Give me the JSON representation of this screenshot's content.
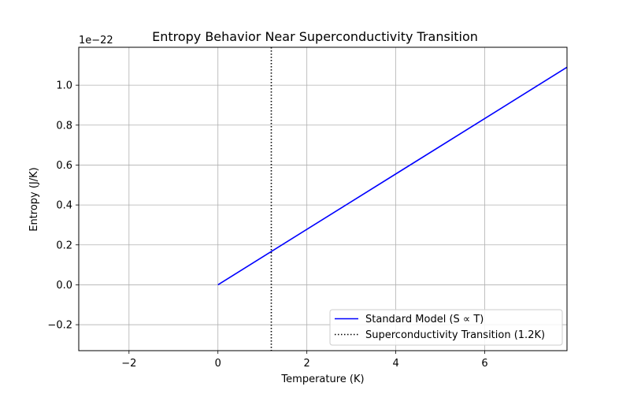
{
  "chart_data": {
    "type": "line",
    "title": "Entropy Behavior Near Superconductivity Transition",
    "xlabel": "Temperature (K)",
    "ylabel": "Entropy (J/K)",
    "y_offset_label": "1e−22",
    "xlim": [
      -3.13,
      7.85
    ],
    "ylim": [
      -0.33,
      1.19
    ],
    "xticks": [
      -2,
      0,
      2,
      4,
      6
    ],
    "xtick_labels": [
      "−2",
      "0",
      "2",
      "4",
      "6"
    ],
    "yticks": [
      -0.2,
      0.0,
      0.2,
      0.4,
      0.6,
      0.8,
      1.0
    ],
    "ytick_labels": [
      "−0.2",
      "0.0",
      "0.2",
      "0.4",
      "0.6",
      "0.8",
      "1.0"
    ],
    "grid": true,
    "legend_position": "bottom-right",
    "series": [
      {
        "name": "Standard Model (S ∝ T)",
        "style": "solid",
        "color": "#0000ff",
        "x": [
          0,
          7.85
        ],
        "y": [
          0,
          1.09
        ]
      }
    ],
    "vlines": [
      {
        "name": "Superconductivity Transition (1.2K)",
        "x": 1.2,
        "style": "dotted",
        "color": "#000000"
      }
    ]
  }
}
